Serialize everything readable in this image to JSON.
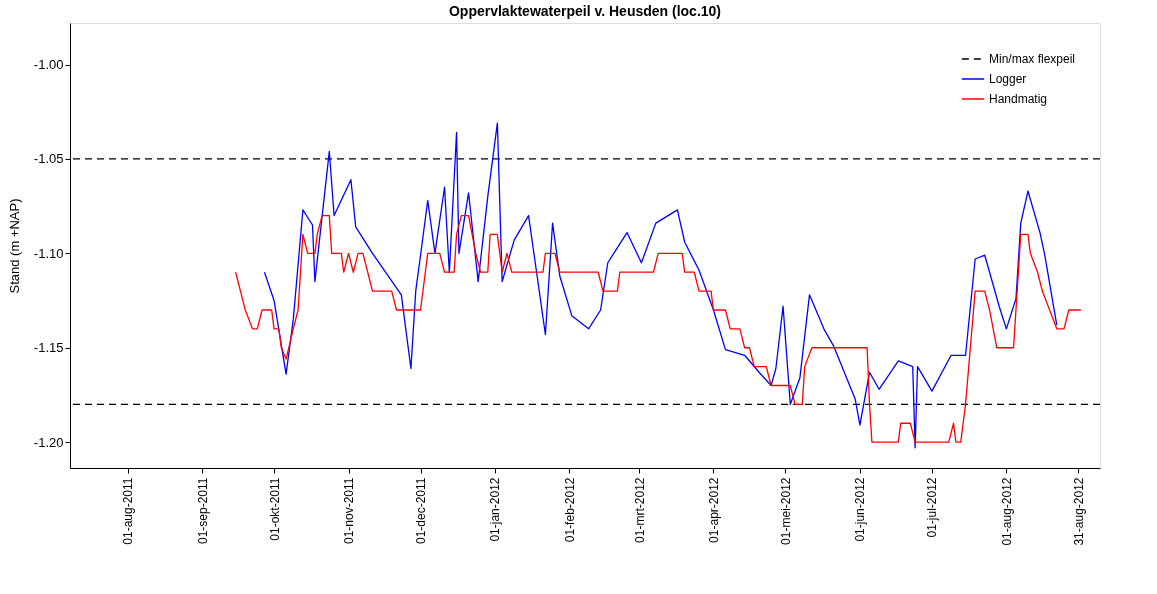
{
  "chart_data": {
    "type": "line",
    "title": "Oppervlaktewaterpeil v. Heusden (loc.10)",
    "ylabel": "Stand (m +NAP)",
    "xlim": [
      "2011-07-08",
      "2012-09-09"
    ],
    "ylim": [
      -1.2137,
      -0.978
    ],
    "xticks": [
      {
        "value": "2011-08-01",
        "label": "01-aug-2011"
      },
      {
        "value": "2011-09-01",
        "label": "01-sep-2011"
      },
      {
        "value": "2011-10-01",
        "label": "01-okt-2011"
      },
      {
        "value": "2011-11-01",
        "label": "01-nov-2011"
      },
      {
        "value": "2011-12-01",
        "label": "01-dec-2011"
      },
      {
        "value": "2012-01-01",
        "label": "01-jan-2012"
      },
      {
        "value": "2012-02-01",
        "label": "01-feb-2012"
      },
      {
        "value": "2012-03-01",
        "label": "01-mrt-2012"
      },
      {
        "value": "2012-04-01",
        "label": "01-apr-2012"
      },
      {
        "value": "2012-05-01",
        "label": "01-mei-2012"
      },
      {
        "value": "2012-06-01",
        "label": "01-jun-2012"
      },
      {
        "value": "2012-07-01",
        "label": "01-jul-2012"
      },
      {
        "value": "2012-08-01",
        "label": "01-aug-2012"
      },
      {
        "value": "2012-08-31",
        "label": "31-aug-2012"
      }
    ],
    "yticks": [
      {
        "value": -1.0,
        "label": "-1.00"
      },
      {
        "value": -1.05,
        "label": "-1.05"
      },
      {
        "value": -1.1,
        "label": "-1.10"
      },
      {
        "value": -1.15,
        "label": "-1.15"
      },
      {
        "value": -1.2,
        "label": "-1.20"
      }
    ],
    "grid": false,
    "legend": "top right",
    "marker": "none",
    "ref_lines": [
      {
        "axis": "y",
        "value": -1.05,
        "label": "Min/max flexpeil",
        "color": "#000000",
        "line_style": "dashed"
      },
      {
        "axis": "y",
        "value": -1.18,
        "color": "#000000",
        "line_style": "dashed"
      }
    ],
    "series": [
      {
        "name": "Logger",
        "color": "#0000ff",
        "line_style": "solid",
        "x": [
          "2011-09-27",
          "2011-10-01",
          "2011-10-06",
          "2011-10-09",
          "2011-10-13",
          "2011-10-17",
          "2011-10-18",
          "2011-10-24",
          "2011-10-26",
          "2011-11-02",
          "2011-11-04",
          "2011-11-11",
          "2011-11-23",
          "2011-11-27",
          "2011-11-29",
          "2011-12-01",
          "2011-12-04",
          "2011-12-07",
          "2011-12-11",
          "2011-12-13",
          "2011-12-16",
          "2011-12-17",
          "2011-12-21",
          "2011-12-25",
          "2011-12-29",
          "2012-01-02",
          "2012-01-04",
          "2012-01-09",
          "2012-01-15",
          "2012-01-22",
          "2012-01-25",
          "2012-01-28",
          "2012-02-02",
          "2012-02-09",
          "2012-02-14",
          "2012-02-17",
          "2012-02-25",
          "2012-03-02",
          "2012-03-08",
          "2012-03-17",
          "2012-03-20",
          "2012-03-26",
          "2012-04-01",
          "2012-04-06",
          "2012-04-14",
          "2012-04-20",
          "2012-04-25",
          "2012-04-27",
          "2012-04-30",
          "2012-05-03",
          "2012-05-07",
          "2012-05-11",
          "2012-05-17",
          "2012-05-21",
          "2012-05-30",
          "2012-06-01",
          "2012-06-05",
          "2012-06-09",
          "2012-06-17",
          "2012-06-23",
          "2012-06-24",
          "2012-06-25",
          "2012-07-01",
          "2012-07-09",
          "2012-07-15",
          "2012-07-19",
          "2012-07-23",
          "2012-07-29",
          "2012-08-01",
          "2012-08-05",
          "2012-08-07",
          "2012-08-10",
          "2012-08-15",
          "2012-08-17",
          "2012-08-22"
        ],
        "values": [
          -1.11,
          -1.125,
          -1.164,
          -1.135,
          -1.077,
          -1.085,
          -1.115,
          -1.046,
          -1.08,
          -1.061,
          -1.086,
          -1.1,
          -1.122,
          -1.161,
          -1.12,
          -1.101,
          -1.072,
          -1.1,
          -1.065,
          -1.11,
          -1.036,
          -1.1,
          -1.068,
          -1.115,
          -1.07,
          -1.031,
          -1.115,
          -1.093,
          -1.08,
          -1.143,
          -1.084,
          -1.112,
          -1.133,
          -1.14,
          -1.13,
          -1.105,
          -1.089,
          -1.105,
          -1.084,
          -1.077,
          -1.094,
          -1.109,
          -1.13,
          -1.151,
          -1.154,
          -1.163,
          -1.17,
          -1.161,
          -1.128,
          -1.18,
          -1.166,
          -1.122,
          -1.14,
          -1.149,
          -1.177,
          -1.191,
          -1.163,
          -1.172,
          -1.157,
          -1.16,
          -1.203,
          -1.16,
          -1.173,
          -1.154,
          -1.154,
          -1.103,
          -1.101,
          -1.128,
          -1.14,
          -1.124,
          -1.084,
          -1.067,
          -1.089,
          -1.101,
          -1.138
        ]
      },
      {
        "name": "Handmatig",
        "color": "#ff0000",
        "line_style": "solid",
        "x": [
          "2011-09-15",
          "2011-09-17",
          "2011-09-19",
          "2011-09-22",
          "2011-09-24",
          "2011-09-26",
          "2011-09-30",
          "2011-10-01",
          "2011-10-03",
          "2011-10-04",
          "2011-10-06",
          "2011-10-09",
          "2011-10-11",
          "2011-10-13",
          "2011-10-15",
          "2011-10-18",
          "2011-10-19",
          "2011-10-21",
          "2011-10-24",
          "2011-10-25",
          "2011-10-29",
          "2011-10-30",
          "2011-11-01",
          "2011-11-03",
          "2011-11-05",
          "2011-11-07",
          "2011-11-09",
          "2011-11-11",
          "2011-11-19",
          "2011-11-21",
          "2011-12-01",
          "2011-12-04",
          "2011-12-09",
          "2011-12-11",
          "2011-12-15",
          "2011-12-16",
          "2011-12-18",
          "2011-12-21",
          "2011-12-24",
          "2011-12-26",
          "2011-12-29",
          "2011-12-30",
          "2012-01-02",
          "2012-01-04",
          "2012-01-06",
          "2012-01-08",
          "2012-01-21",
          "2012-01-22",
          "2012-01-26",
          "2012-01-28",
          "2012-02-13",
          "2012-02-15",
          "2012-02-21",
          "2012-02-22",
          "2012-03-07",
          "2012-03-09",
          "2012-03-19",
          "2012-03-20",
          "2012-03-24",
          "2012-03-26",
          "2012-03-31",
          "2012-04-01",
          "2012-04-06",
          "2012-04-08",
          "2012-04-12",
          "2012-04-14",
          "2012-04-16",
          "2012-04-18",
          "2012-04-23",
          "2012-04-25",
          "2012-05-03",
          "2012-05-05",
          "2012-05-08",
          "2012-05-09",
          "2012-05-12",
          "2012-06-04",
          "2012-06-05",
          "2012-06-06",
          "2012-06-17",
          "2012-06-18",
          "2012-06-22",
          "2012-06-24",
          "2012-07-08",
          "2012-07-10",
          "2012-07-11",
          "2012-07-13",
          "2012-07-15",
          "2012-07-19",
          "2012-07-23",
          "2012-07-25",
          "2012-07-28",
          "2012-08-04",
          "2012-08-07",
          "2012-08-10",
          "2012-08-11",
          "2012-08-14",
          "2012-08-16",
          "2012-08-19",
          "2012-08-22",
          "2012-08-25",
          "2012-08-27",
          "2012-09-01"
        ],
        "values": [
          -1.11,
          -1.12,
          -1.13,
          -1.14,
          -1.14,
          -1.13,
          -1.13,
          -1.14,
          -1.14,
          -1.15,
          -1.156,
          -1.14,
          -1.13,
          -1.09,
          -1.1,
          -1.1,
          -1.09,
          -1.08,
          -1.08,
          -1.1,
          -1.1,
          -1.11,
          -1.1,
          -1.11,
          -1.1,
          -1.1,
          -1.11,
          -1.12,
          -1.12,
          -1.13,
          -1.13,
          -1.1,
          -1.1,
          -1.11,
          -1.11,
          -1.09,
          -1.08,
          -1.08,
          -1.1,
          -1.11,
          -1.11,
          -1.09,
          -1.09,
          -1.11,
          -1.1,
          -1.11,
          -1.11,
          -1.1,
          -1.1,
          -1.11,
          -1.11,
          -1.12,
          -1.12,
          -1.11,
          -1.11,
          -1.1,
          -1.1,
          -1.11,
          -1.11,
          -1.12,
          -1.12,
          -1.13,
          -1.13,
          -1.14,
          -1.14,
          -1.15,
          -1.15,
          -1.16,
          -1.16,
          -1.17,
          -1.17,
          -1.18,
          -1.18,
          -1.16,
          -1.15,
          -1.15,
          -1.18,
          -1.2,
          -1.2,
          -1.19,
          -1.19,
          -1.2,
          -1.2,
          -1.19,
          -1.2,
          -1.2,
          -1.18,
          -1.12,
          -1.12,
          -1.13,
          -1.15,
          -1.15,
          -1.09,
          -1.09,
          -1.1,
          -1.11,
          -1.12,
          -1.13,
          -1.14,
          -1.14,
          -1.13,
          -1.13
        ]
      }
    ]
  }
}
